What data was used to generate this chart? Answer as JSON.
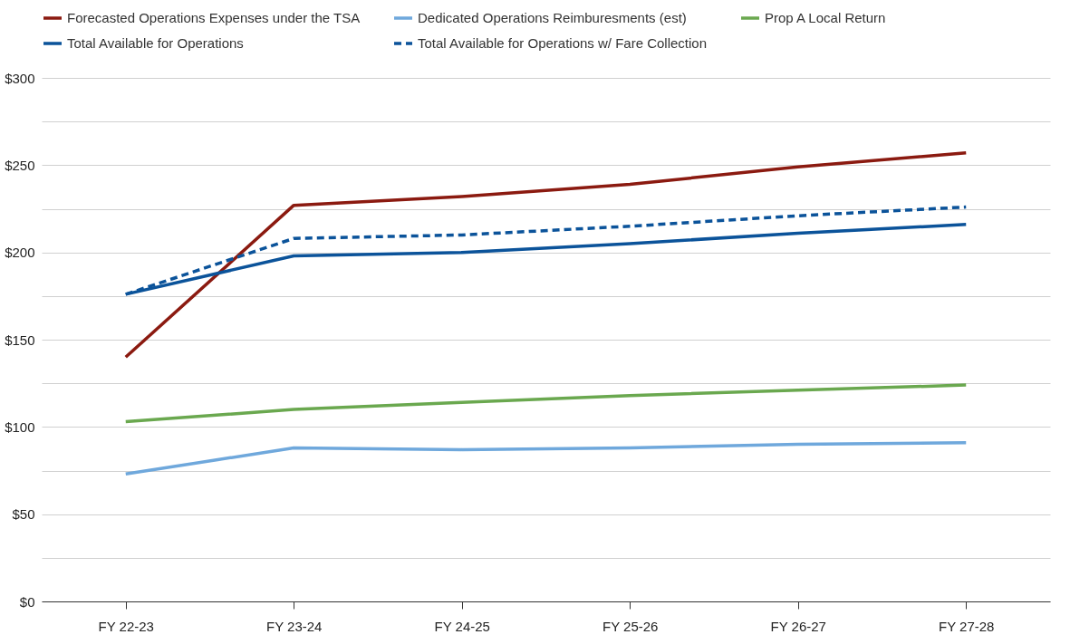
{
  "chart_data": {
    "type": "line",
    "categories": [
      "FY 22-23",
      "FY 23-24",
      "FY 24-25",
      "FY 25-26",
      "FY 26-27",
      "FY 27-28"
    ],
    "series": [
      {
        "name": "Forecasted Operations Expenses under the TSA",
        "color": "#8b1a10",
        "values": [
          140,
          227,
          232,
          239,
          249,
          257
        ]
      },
      {
        "name": "Dedicated Operations Reimburesments (est)",
        "color": "#6fa8dc",
        "values": [
          73,
          88,
          87,
          88,
          90,
          91
        ]
      },
      {
        "name": "Prop A Local Return",
        "color": "#6aa84f",
        "values": [
          103,
          110,
          114,
          118,
          121,
          124
        ]
      },
      {
        "name": "Total Available for Operations",
        "color": "#0b539a",
        "values": [
          176,
          198,
          200,
          205,
          211,
          216
        ]
      },
      {
        "name": "Total Available for Operations w/ Fare Collection",
        "color": "#0b539a",
        "line_style": "dashed",
        "values": [
          176,
          208,
          210,
          215,
          221,
          226
        ]
      }
    ],
    "ylim": [
      0,
      300
    ],
    "yticks": [
      {
        "value": 0,
        "label": "$0"
      },
      {
        "value": 25,
        "label": null
      },
      {
        "value": 50,
        "label": "$50"
      },
      {
        "value": 75,
        "label": null
      },
      {
        "value": 100,
        "label": "$100"
      },
      {
        "value": 125,
        "label": null
      },
      {
        "value": 150,
        "label": "$150"
      },
      {
        "value": 175,
        "label": null
      },
      {
        "value": 200,
        "label": "$200"
      },
      {
        "value": 225,
        "label": null
      },
      {
        "value": 250,
        "label": "$250"
      },
      {
        "value": 275,
        "label": null
      },
      {
        "value": 300,
        "label": "$300"
      }
    ],
    "grid": "y",
    "legend": "top",
    "marker": "none",
    "line_style": "solid"
  }
}
